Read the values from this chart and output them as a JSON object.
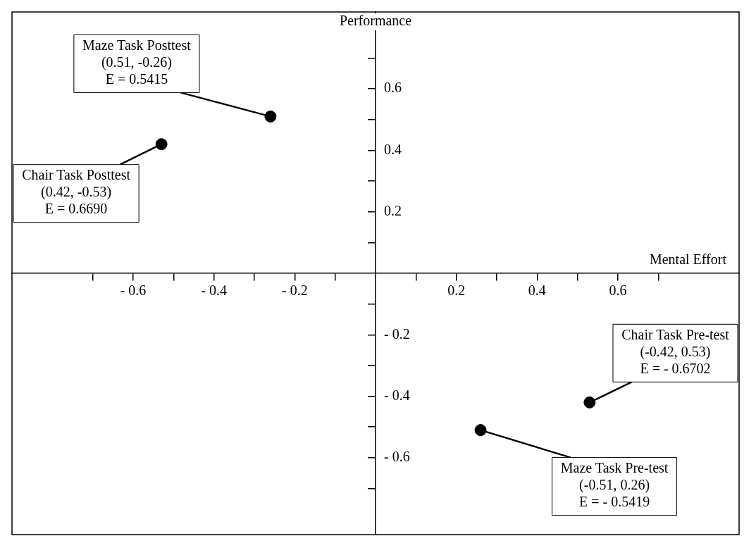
{
  "chart_data": {
    "type": "scatter",
    "xlabel": "Mental Effort",
    "ylabel": "Performance",
    "x": [
      -0.26,
      -0.53,
      0.53,
      0.26
    ],
    "values": [
      0.51,
      0.42,
      -0.42,
      -0.51
    ],
    "color": "#000000",
    "marker": "circle",
    "legend": false,
    "grid": false,
    "xlim": [
      -0.9,
      0.9
    ],
    "ylim": [
      -0.85,
      0.85
    ],
    "xticks": [
      {
        "value": -0.7,
        "label": null
      },
      {
        "value": -0.6,
        "label": "- 0.6"
      },
      {
        "value": -0.5,
        "label": null
      },
      {
        "value": -0.4,
        "label": "- 0.4"
      },
      {
        "value": -0.3,
        "label": null
      },
      {
        "value": -0.2,
        "label": "- 0.2"
      },
      {
        "value": -0.1,
        "label": null
      },
      {
        "value": 0.1,
        "label": null
      },
      0.2,
      {
        "value": 0.3,
        "label": null
      },
      0.4,
      {
        "value": 0.5,
        "label": null
      },
      0.6,
      {
        "value": 0.7,
        "label": null
      }
    ],
    "yticks": [
      {
        "value": -0.7,
        "label": null
      },
      {
        "value": -0.6,
        "label": "- 0.6"
      },
      {
        "value": -0.5,
        "label": null
      },
      {
        "value": -0.4,
        "label": "- 0.4"
      },
      {
        "value": -0.3,
        "label": null
      },
      {
        "value": -0.2,
        "label": "- 0.2"
      },
      {
        "value": -0.1,
        "label": null
      },
      {
        "value": 0.1,
        "label": null
      },
      0.2,
      {
        "value": 0.3,
        "label": null
      },
      0.4,
      {
        "value": 0.5,
        "label": null
      },
      0.6,
      {
        "value": 0.7,
        "label": null
      }
    ],
    "annotations": [
      {
        "text": "Maze Task Posttest\n(0.51, -0.26)\nE = 0.5415",
        "x": -0.26,
        "y": 0.51
      },
      {
        "text": "Chair Task Posttest\n(0.42, -0.53)\nE = 0.6690",
        "x": -0.53,
        "y": 0.42
      },
      {
        "text": "Chair Task Pre-test\n(-0.42, 0.53)\nE = - 0.6702",
        "x": 0.53,
        "y": -0.42
      },
      {
        "text": "Maze Task Pre-test\n(-0.51, 0.26)\nE = - 0.5419",
        "x": 0.26,
        "y": -0.51
      }
    ]
  }
}
